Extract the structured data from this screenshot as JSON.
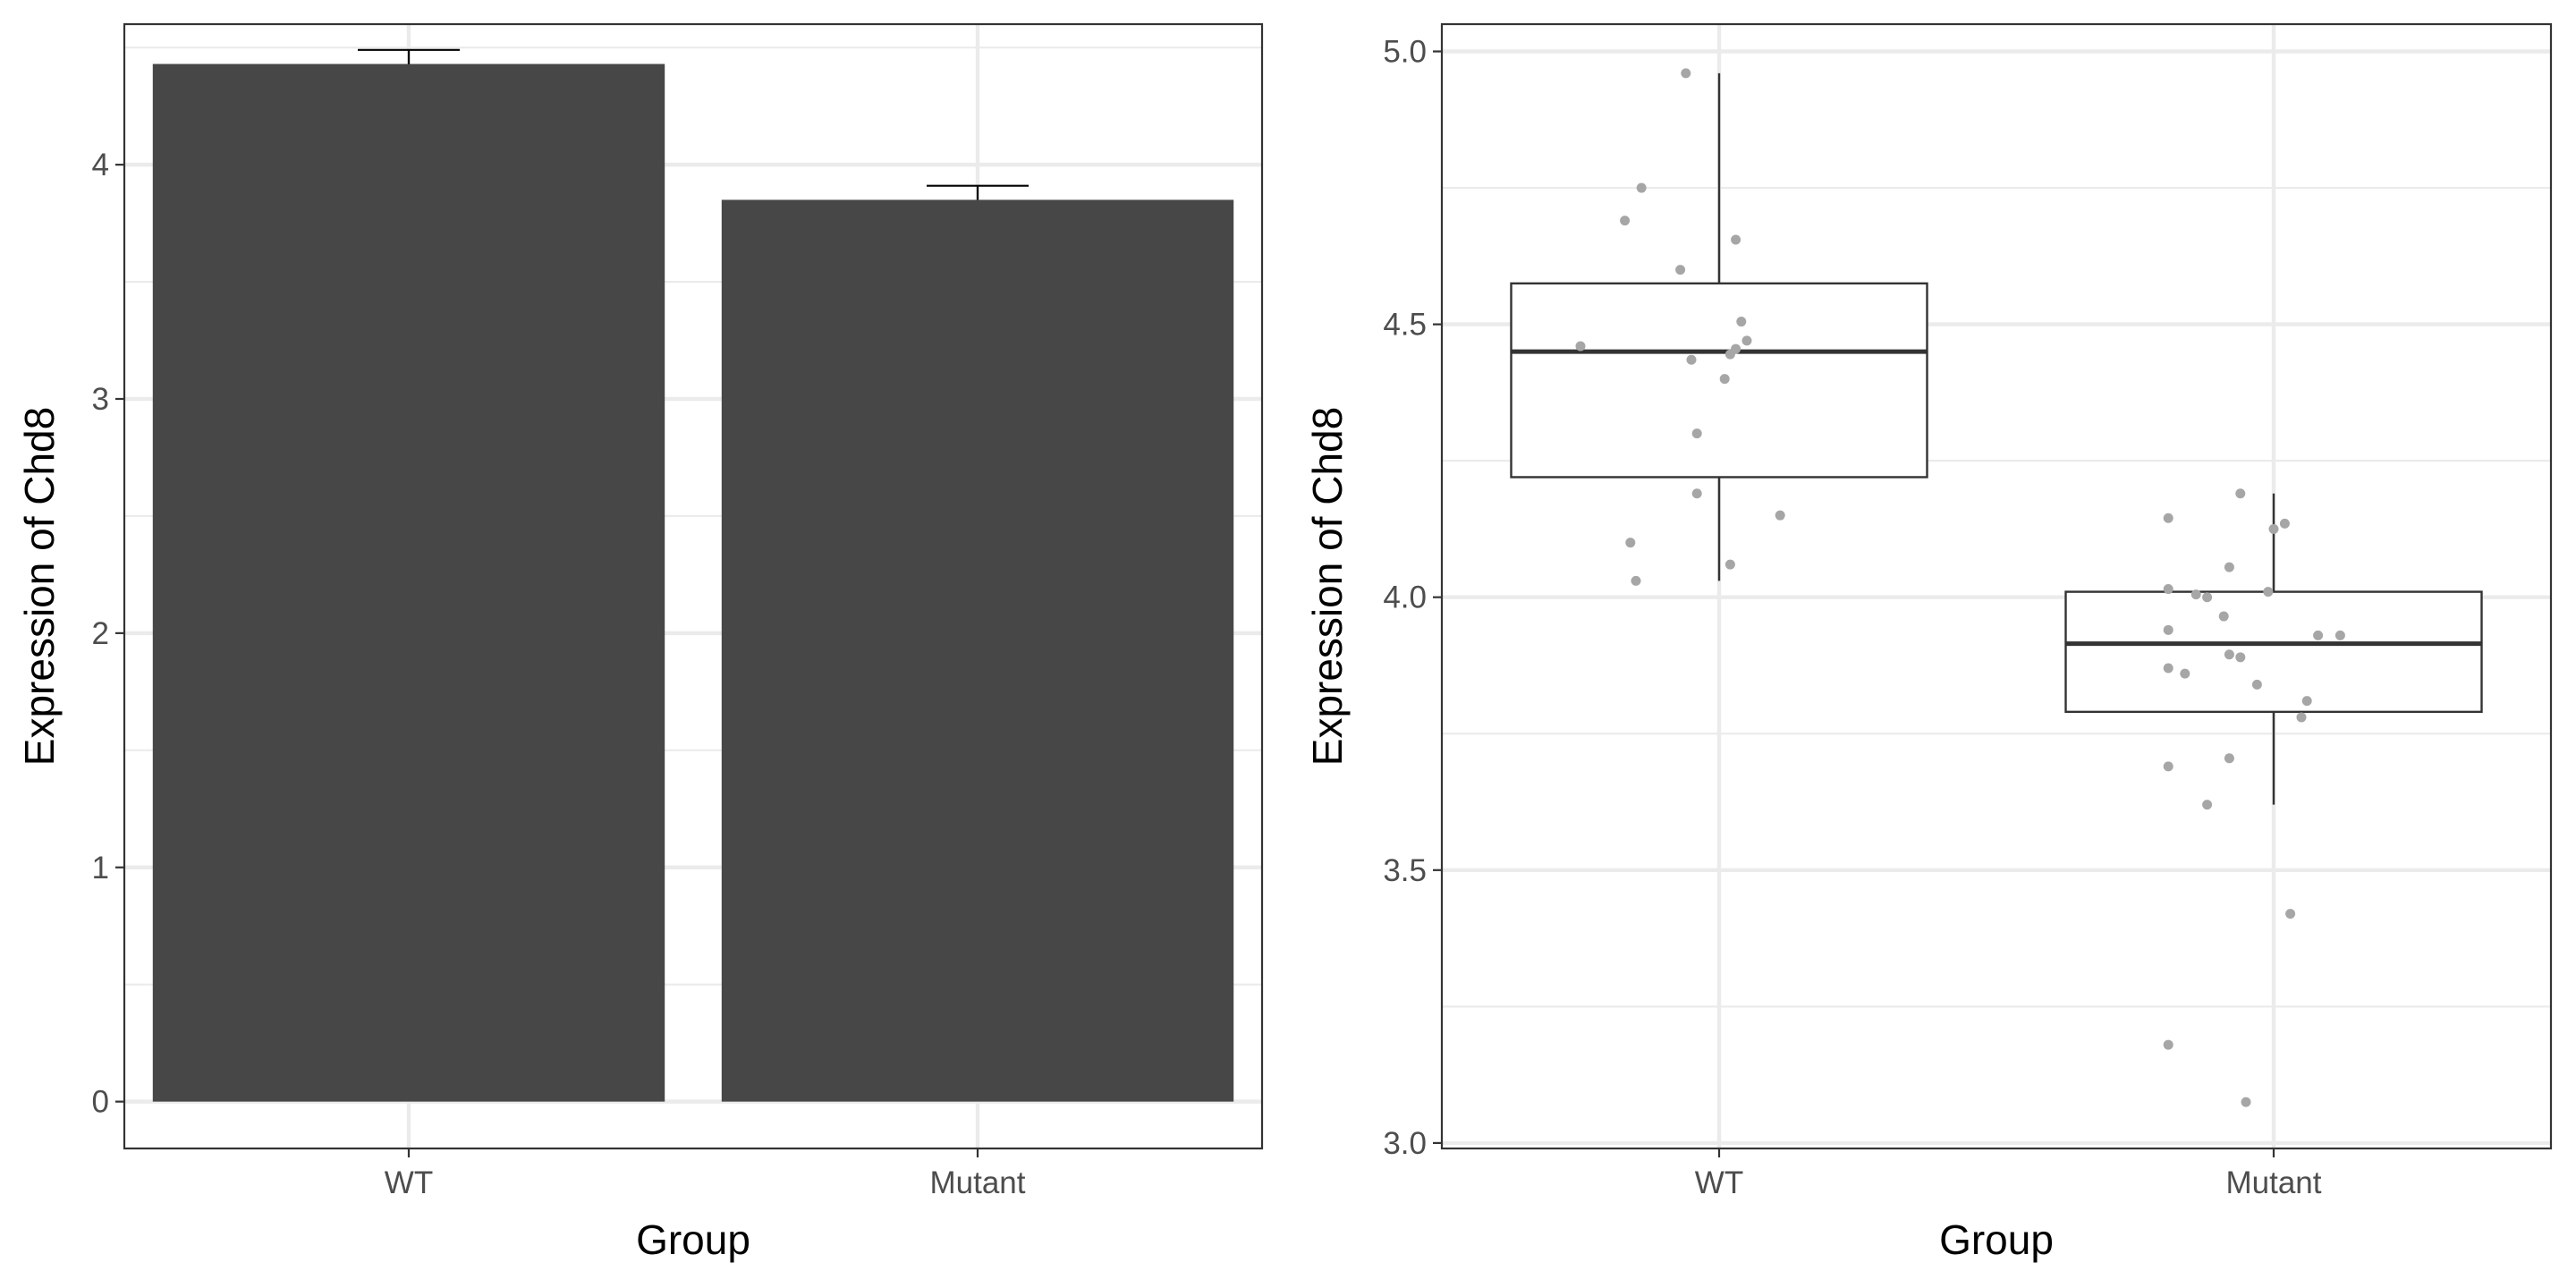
{
  "chart_data": [
    {
      "type": "bar",
      "categories": [
        "WT",
        "Mutant"
      ],
      "values": [
        4.43,
        3.85
      ],
      "error_upper": [
        4.49,
        3.91
      ],
      "xlabel": "Group",
      "ylabel": "Expression of Chd8",
      "ylim": [
        -0.2,
        4.6
      ],
      "yticks": [
        0,
        1,
        2,
        3,
        4
      ],
      "ytick_labels": [
        "0",
        "1",
        "2",
        "3",
        "4"
      ],
      "grid": true
    },
    {
      "type": "box",
      "categories": [
        "WT",
        "Mutant"
      ],
      "boxes": [
        {
          "name": "WT",
          "min": 4.03,
          "q1": 4.22,
          "median": 4.45,
          "q3": 4.575,
          "max": 4.96
        },
        {
          "name": "Mutant",
          "min": 3.62,
          "q1": 3.79,
          "median": 3.915,
          "q3": 4.01,
          "max": 4.19
        }
      ],
      "points": [
        {
          "group": "WT",
          "jitter": -0.06,
          "y": 4.96
        },
        {
          "group": "WT",
          "jitter": -0.14,
          "y": 4.75
        },
        {
          "group": "WT",
          "jitter": -0.17,
          "y": 4.69
        },
        {
          "group": "WT",
          "jitter": 0.03,
          "y": 4.655
        },
        {
          "group": "WT",
          "jitter": -0.07,
          "y": 4.6
        },
        {
          "group": "WT",
          "jitter": 0.04,
          "y": 4.505
        },
        {
          "group": "WT",
          "jitter": 0.05,
          "y": 4.47
        },
        {
          "group": "WT",
          "jitter": -0.25,
          "y": 4.46
        },
        {
          "group": "WT",
          "jitter": 0.03,
          "y": 4.455
        },
        {
          "group": "WT",
          "jitter": 0.02,
          "y": 4.445
        },
        {
          "group": "WT",
          "jitter": -0.05,
          "y": 4.435
        },
        {
          "group": "WT",
          "jitter": 0.01,
          "y": 4.4
        },
        {
          "group": "WT",
          "jitter": -0.04,
          "y": 4.3
        },
        {
          "group": "WT",
          "jitter": -0.04,
          "y": 4.19
        },
        {
          "group": "WT",
          "jitter": 0.11,
          "y": 4.15
        },
        {
          "group": "WT",
          "jitter": -0.16,
          "y": 4.1
        },
        {
          "group": "WT",
          "jitter": 0.02,
          "y": 4.06
        },
        {
          "group": "WT",
          "jitter": -0.15,
          "y": 4.03
        },
        {
          "group": "Mutant",
          "jitter": -0.06,
          "y": 4.19
        },
        {
          "group": "Mutant",
          "jitter": -0.19,
          "y": 4.145
        },
        {
          "group": "Mutant",
          "jitter": 0.02,
          "y": 4.135
        },
        {
          "group": "Mutant",
          "jitter": 0.0,
          "y": 4.125
        },
        {
          "group": "Mutant",
          "jitter": -0.08,
          "y": 4.055
        },
        {
          "group": "Mutant",
          "jitter": -0.19,
          "y": 4.015
        },
        {
          "group": "Mutant",
          "jitter": -0.01,
          "y": 4.01
        },
        {
          "group": "Mutant",
          "jitter": -0.14,
          "y": 4.005
        },
        {
          "group": "Mutant",
          "jitter": -0.12,
          "y": 4.0
        },
        {
          "group": "Mutant",
          "jitter": -0.09,
          "y": 3.965
        },
        {
          "group": "Mutant",
          "jitter": -0.19,
          "y": 3.94
        },
        {
          "group": "Mutant",
          "jitter": 0.08,
          "y": 3.93
        },
        {
          "group": "Mutant",
          "jitter": 0.12,
          "y": 3.93
        },
        {
          "group": "Mutant",
          "jitter": -0.08,
          "y": 3.895
        },
        {
          "group": "Mutant",
          "jitter": -0.06,
          "y": 3.89
        },
        {
          "group": "Mutant",
          "jitter": -0.19,
          "y": 3.87
        },
        {
          "group": "Mutant",
          "jitter": -0.16,
          "y": 3.86
        },
        {
          "group": "Mutant",
          "jitter": -0.03,
          "y": 3.84
        },
        {
          "group": "Mutant",
          "jitter": 0.06,
          "y": 3.81
        },
        {
          "group": "Mutant",
          "jitter": 0.05,
          "y": 3.78
        },
        {
          "group": "Mutant",
          "jitter": -0.08,
          "y": 3.705
        },
        {
          "group": "Mutant",
          "jitter": -0.19,
          "y": 3.69
        },
        {
          "group": "Mutant",
          "jitter": -0.12,
          "y": 3.62
        },
        {
          "group": "Mutant",
          "jitter": 0.03,
          "y": 3.42
        },
        {
          "group": "Mutant",
          "jitter": -0.19,
          "y": 3.18
        },
        {
          "group": "Mutant",
          "jitter": -0.05,
          "y": 3.075
        }
      ],
      "xlabel": "Group",
      "ylabel": "Expression of Chd8",
      "ylim": [
        2.99,
        5.05
      ],
      "yticks": [
        3.0,
        3.5,
        4.0,
        4.5,
        5.0
      ],
      "ytick_labels": [
        "3.0",
        "3.5",
        "4.0",
        "4.5",
        "5.0"
      ],
      "grid": true
    }
  ]
}
